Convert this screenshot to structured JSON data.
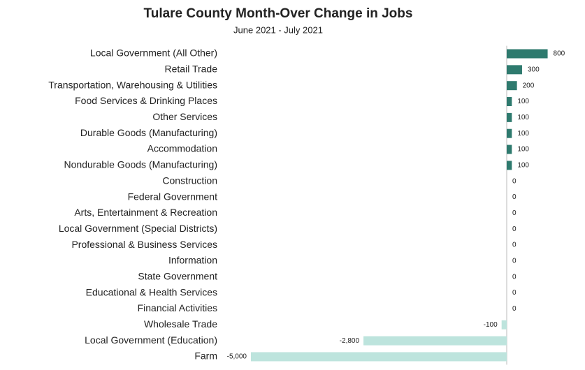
{
  "chart_data": {
    "type": "hbar",
    "title": "Tulare County Month-Over Change in Jobs",
    "subtitle": "June 2021 - July 2021",
    "categories": [
      "Local Government (All Other)",
      "Retail Trade",
      "Transportation, Warehousing & Utilities",
      "Food Services & Drinking Places",
      "Other Services",
      "Durable Goods (Manufacturing)",
      "Accommodation",
      "Nondurable Goods (Manufacturing)",
      "Construction",
      "Federal Government",
      "Arts, Entertainment & Recreation",
      "Local Government (Special Districts)",
      "Professional & Business Services",
      "Information",
      "State Government",
      "Educational & Health Services",
      "Financial Activities",
      "Wholesale Trade",
      "Local Government (Education)",
      "Farm"
    ],
    "values": [
      800,
      300,
      200,
      100,
      100,
      100,
      100,
      100,
      0,
      0,
      0,
      0,
      0,
      0,
      0,
      0,
      0,
      -100,
      -2800,
      -5000
    ],
    "value_labels": [
      "800",
      "300",
      "200",
      "100",
      "100",
      "100",
      "100",
      "100",
      "0",
      "0",
      "0",
      "0",
      "0",
      "0",
      "0",
      "0",
      "0",
      "-100",
      "-2,800",
      "-5,000"
    ],
    "positive_color": "#2e7a6e",
    "negative_color": "#bde4dd"
  }
}
